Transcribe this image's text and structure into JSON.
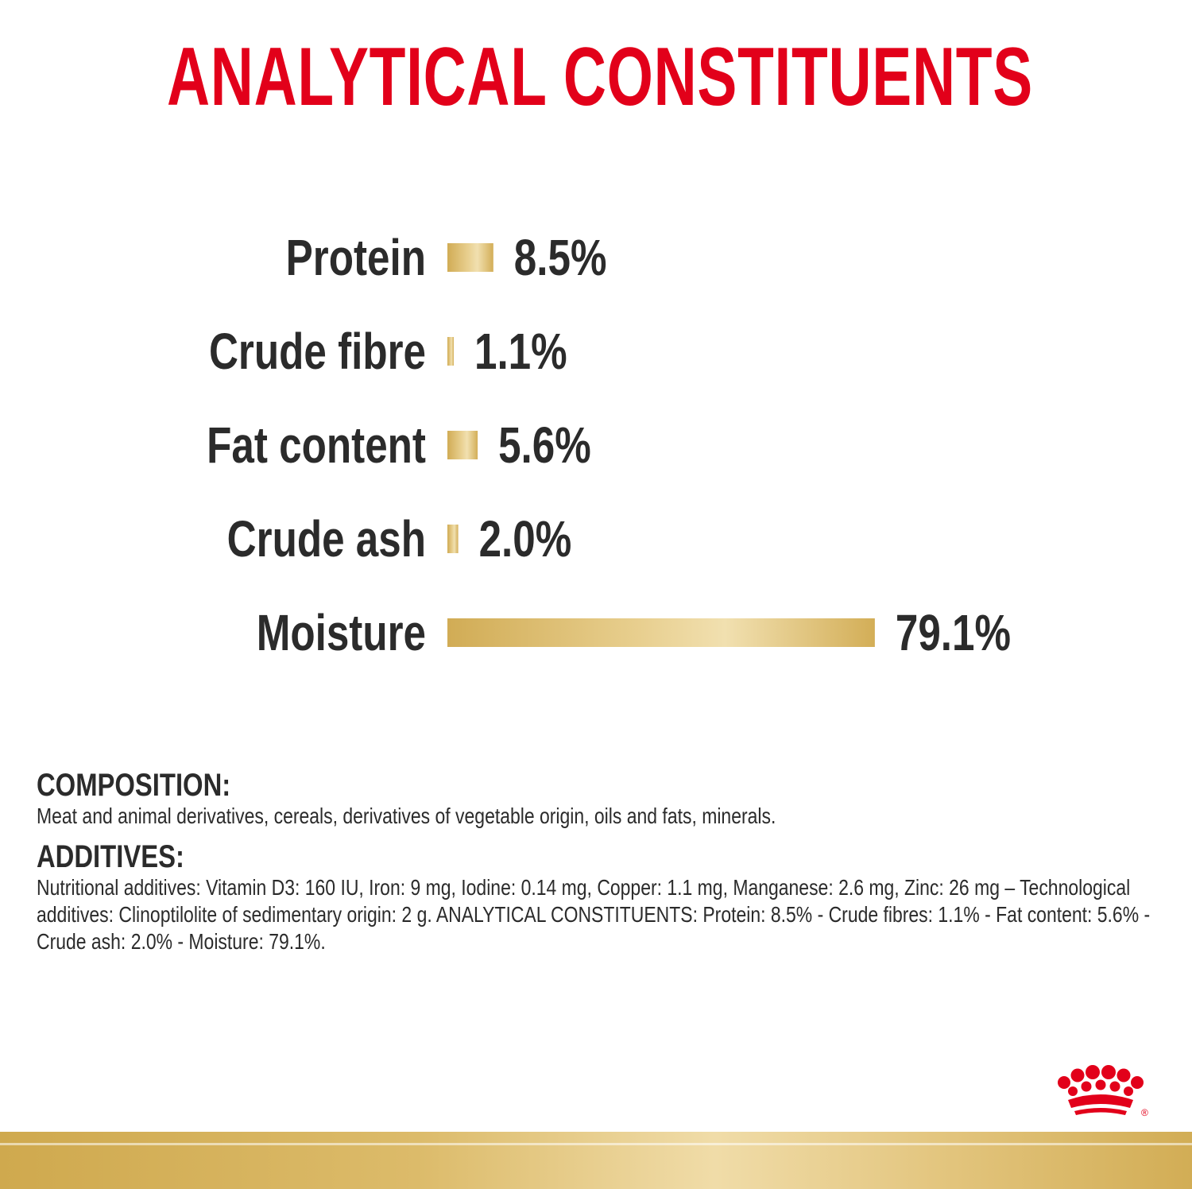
{
  "title": "ANALYTICAL CONSTITUENTS",
  "colors": {
    "title": "#e2001a",
    "text": "#2b2b2b",
    "bar_dark": "#d1ac55",
    "bar_light": "#f1e0b0",
    "logo": "#e2001a"
  },
  "chart_data": {
    "type": "bar",
    "orientation": "horizontal",
    "categories": [
      "Protein",
      "Crude fibre",
      "Fat content",
      "Crude ash",
      "Moisture"
    ],
    "values": [
      8.5,
      1.1,
      5.6,
      2.0,
      79.1
    ],
    "value_labels": [
      "8.5%",
      "1.1%",
      "5.6%",
      "2.0%",
      "79.1%"
    ],
    "unit": "%",
    "grid": false,
    "legend": "none"
  },
  "composition": {
    "heading": "COMPOSITION:",
    "text": "Meat and animal derivatives, cereals, derivatives of vegetable origin, oils and fats, minerals."
  },
  "additives": {
    "heading": "ADDITIVES:",
    "text": "Nutritional additives: Vitamin D3: 160 IU, Iron: 9 mg, Iodine: 0.14 mg, Copper: 1.1 mg, Manganese: 2.6 mg, Zinc: 26 mg – Technological additives: Clinoptilolite of sedimentary origin: 2 g. ANALYTICAL CONSTITUENTS: Protein: 8.5% - Crude fibres: 1.1% - Fat content: 5.6% - Crude ash: 2.0% - Moisture: 79.1%."
  },
  "logo": {
    "icon": "crown-icon",
    "mark": "®"
  }
}
